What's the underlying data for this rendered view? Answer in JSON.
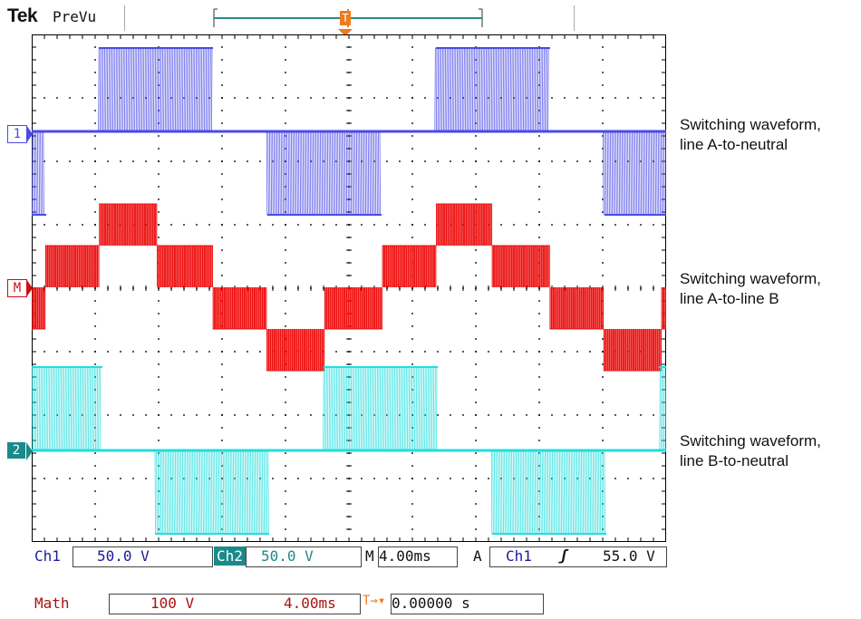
{
  "header": {
    "brand": "Tek",
    "mode": "PreVu",
    "trigger_marker": "T"
  },
  "markers": {
    "ch1": "1",
    "math": "M",
    "ch2": "2"
  },
  "annotations": [
    {
      "line1": "Switching waveform,",
      "line2": "line A-to-neutral"
    },
    {
      "line1": "Switching waveform,",
      "line2": "line A-to-line B"
    },
    {
      "line1": "Switching waveform,",
      "line2": "line B-to-neutral"
    }
  ],
  "readout": {
    "ch1_label": "Ch1",
    "ch1_scale": "50.0 V",
    "ch2_label": "Ch2",
    "ch2_scale": "50.0 V",
    "timebase_label": "M",
    "timebase": "4.00ms",
    "acq_label": "A",
    "trig_source": "Ch1",
    "trig_slope": "ʃ",
    "trig_level": "55.0 V",
    "math_label": "Math",
    "math_scale": "100 V",
    "math_time": "4.00ms",
    "trig_pos_icon": "T→▾",
    "trig_position": "0.00000 s"
  },
  "colors": {
    "ch1": "#4a4ae8",
    "math": "#ee1111",
    "ch2": "#22dddd",
    "grid": "#000000",
    "trigger": "#f07a1e"
  },
  "chart_data": {
    "type": "line",
    "title": "",
    "xlabel": "",
    "ylabel": "",
    "divisions": {
      "x": 10,
      "y": 8
    },
    "period_ms": 20,
    "x_range_ms": [
      0,
      40
    ],
    "series": [
      {
        "name": "Ch1",
        "volts_per_div": 50,
        "levels_div": [
          1.5,
          -1.5
        ],
        "description": "two-level PWM square switching, 0 to +/-V"
      },
      {
        "name": "Math",
        "volts_per_div": 100,
        "levels_div": [
          -1,
          -0.5,
          0,
          0.5,
          1
        ],
        "description": "multi-level stepped PWM staircase"
      },
      {
        "name": "Ch2",
        "volts_per_div": 50,
        "levels_div": [
          1.5,
          -1.5
        ],
        "description": "two-level PWM square switching, phase shifted 120 deg"
      }
    ]
  }
}
